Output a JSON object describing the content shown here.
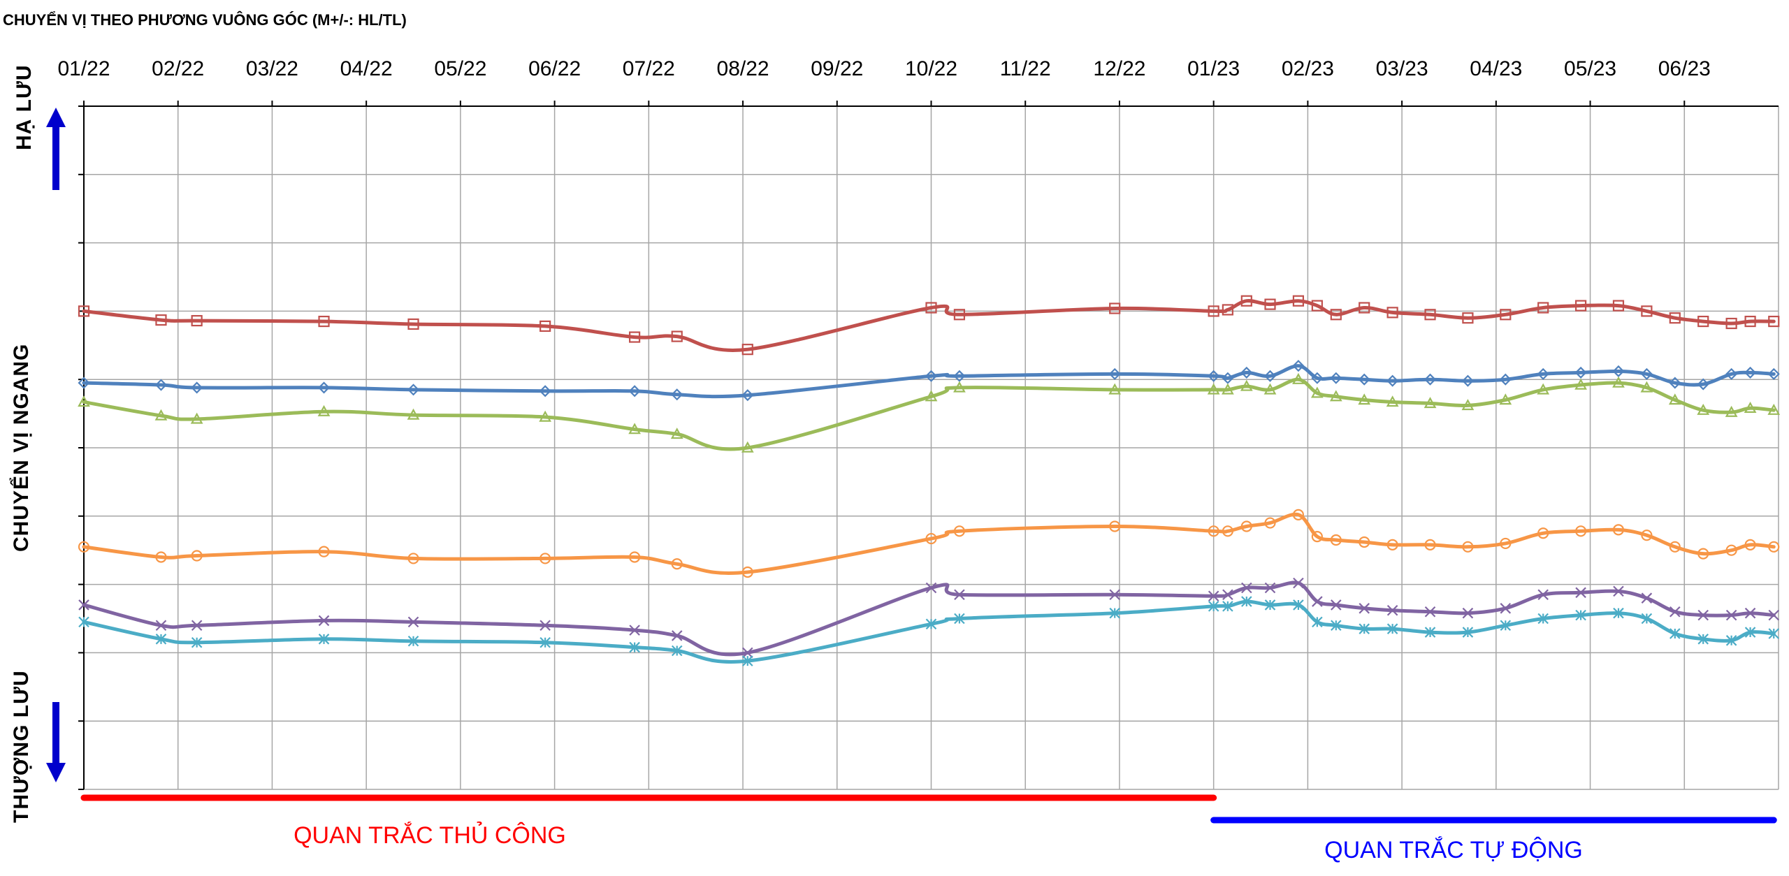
{
  "chart_data": {
    "type": "line",
    "title": "CHUYỂN VỊ THEO PHƯƠNG VUÔNG GÓC (M+/-: HL/TL)",
    "ylabel": "CHUYỂN VỊ NGANG",
    "ylabel_top": "HẠ LƯU",
    "ylabel_bottom": "THƯỢNG LƯU",
    "x_ticks": [
      "01/22",
      "02/22",
      "03/22",
      "04/22",
      "05/22",
      "06/22",
      "07/22",
      "08/22",
      "09/22",
      "10/22",
      "11/22",
      "12/22",
      "01/23",
      "02/23",
      "03/23",
      "04/23",
      "05/23",
      "06/23"
    ],
    "xlim": [
      0,
      18
    ],
    "ylim": [
      -10,
      0
    ],
    "grid": true,
    "periods": [
      {
        "label": "QUAN TRẮC THỦ CÔNG",
        "from": 0.0,
        "to": 12.0,
        "color": "#ff0000"
      },
      {
        "label": "QUAN TRẮC TỰ ĐỘNG",
        "from": 12.0,
        "to": 17.95,
        "color": "#0000ff"
      }
    ],
    "series": [
      {
        "color": "#c0504d",
        "marker": "square",
        "x": [
          0,
          0.82,
          1.2,
          2.55,
          3.5,
          4.9,
          5.85,
          6.3,
          7.05,
          9.0,
          9.3,
          10.95,
          12.0,
          12.15,
          12.35,
          12.6,
          12.9,
          13.1,
          13.3,
          13.6,
          13.9,
          14.3,
          14.7,
          15.1,
          15.5,
          15.9,
          16.3,
          16.6,
          16.9,
          17.2,
          17.5,
          17.7,
          17.95
        ],
        "y": [
          -3.0,
          -3.13,
          -3.14,
          -3.15,
          -3.19,
          -3.22,
          -3.38,
          -3.37,
          -3.56,
          -2.95,
          -3.05,
          -2.96,
          -3.0,
          -2.98,
          -2.85,
          -2.9,
          -2.85,
          -2.92,
          -3.05,
          -2.95,
          -3.02,
          -3.05,
          -3.1,
          -3.05,
          -2.95,
          -2.92,
          -2.92,
          -3.0,
          -3.1,
          -3.15,
          -3.18,
          -3.15,
          -3.15
        ]
      },
      {
        "color": "#4f81bd",
        "marker": "diamond",
        "x": [
          0,
          0.82,
          1.2,
          2.55,
          3.5,
          4.9,
          5.85,
          6.3,
          7.05,
          9.0,
          9.3,
          10.95,
          12.0,
          12.15,
          12.35,
          12.6,
          12.9,
          13.1,
          13.3,
          13.6,
          13.9,
          14.3,
          14.7,
          15.1,
          15.5,
          15.9,
          16.3,
          16.6,
          16.9,
          17.2,
          17.5,
          17.7,
          17.95
        ],
        "y": [
          -4.05,
          -4.08,
          -4.12,
          -4.12,
          -4.15,
          -4.17,
          -4.17,
          -4.22,
          -4.23,
          -3.95,
          -3.95,
          -3.92,
          -3.95,
          -3.98,
          -3.9,
          -3.95,
          -3.8,
          -3.98,
          -3.98,
          -4.0,
          -4.02,
          -4.0,
          -4.02,
          -4.0,
          -3.92,
          -3.9,
          -3.88,
          -3.92,
          -4.05,
          -4.07,
          -3.92,
          -3.9,
          -3.92
        ]
      },
      {
        "color": "#9bbb59",
        "marker": "triangle",
        "x": [
          0,
          0.82,
          1.2,
          2.55,
          3.5,
          4.9,
          5.85,
          6.3,
          7.05,
          9.0,
          9.3,
          10.95,
          12.0,
          12.15,
          12.35,
          12.6,
          12.9,
          13.1,
          13.3,
          13.6,
          13.9,
          14.3,
          14.7,
          15.1,
          15.5,
          15.9,
          16.3,
          16.6,
          16.9,
          17.2,
          17.5,
          17.7,
          17.95
        ],
        "y": [
          -4.33,
          -4.53,
          -4.58,
          -4.47,
          -4.52,
          -4.55,
          -4.73,
          -4.8,
          -5.0,
          -4.25,
          -4.12,
          -4.15,
          -4.15,
          -4.15,
          -4.1,
          -4.15,
          -4.0,
          -4.2,
          -4.25,
          -4.3,
          -4.33,
          -4.35,
          -4.38,
          -4.3,
          -4.15,
          -4.08,
          -4.05,
          -4.12,
          -4.3,
          -4.45,
          -4.48,
          -4.42,
          -4.45
        ]
      },
      {
        "color": "#f79646",
        "marker": "circle",
        "x": [
          0,
          0.82,
          1.2,
          2.55,
          3.5,
          4.9,
          5.85,
          6.3,
          7.05,
          9.0,
          9.3,
          10.95,
          12.0,
          12.15,
          12.35,
          12.6,
          12.9,
          13.1,
          13.3,
          13.6,
          13.9,
          14.3,
          14.7,
          15.1,
          15.5,
          15.9,
          16.3,
          16.6,
          16.9,
          17.2,
          17.5,
          17.7,
          17.95
        ],
        "y": [
          -6.45,
          -6.6,
          -6.58,
          -6.52,
          -6.62,
          -6.62,
          -6.6,
          -6.7,
          -6.82,
          -6.33,
          -6.22,
          -6.15,
          -6.22,
          -6.22,
          -6.15,
          -6.1,
          -5.98,
          -6.3,
          -6.35,
          -6.38,
          -6.42,
          -6.42,
          -6.45,
          -6.4,
          -6.25,
          -6.22,
          -6.2,
          -6.28,
          -6.45,
          -6.55,
          -6.5,
          -6.42,
          -6.45
        ]
      },
      {
        "color": "#8064a2",
        "marker": "x",
        "x": [
          0,
          0.82,
          1.2,
          2.55,
          3.5,
          4.9,
          5.85,
          6.3,
          7.05,
          9.0,
          9.3,
          10.95,
          12.0,
          12.15,
          12.35,
          12.6,
          12.9,
          13.1,
          13.3,
          13.6,
          13.9,
          14.3,
          14.7,
          15.1,
          15.5,
          15.9,
          16.3,
          16.6,
          16.9,
          17.2,
          17.5,
          17.7,
          17.95
        ],
        "y": [
          -7.3,
          -7.6,
          -7.6,
          -7.53,
          -7.55,
          -7.6,
          -7.67,
          -7.75,
          -8.0,
          -7.05,
          -7.15,
          -7.15,
          -7.17,
          -7.15,
          -7.05,
          -7.05,
          -6.98,
          -7.25,
          -7.3,
          -7.35,
          -7.38,
          -7.4,
          -7.42,
          -7.35,
          -7.15,
          -7.12,
          -7.1,
          -7.2,
          -7.4,
          -7.45,
          -7.45,
          -7.42,
          -7.45
        ]
      },
      {
        "color": "#4bacc6",
        "marker": "star",
        "x": [
          0,
          0.82,
          1.2,
          2.55,
          3.5,
          4.9,
          5.85,
          6.3,
          7.05,
          9.0,
          9.3,
          10.95,
          12.0,
          12.15,
          12.35,
          12.6,
          12.9,
          13.1,
          13.3,
          13.6,
          13.9,
          14.3,
          14.7,
          15.1,
          15.5,
          15.9,
          16.3,
          16.6,
          16.9,
          17.2,
          17.5,
          17.7,
          17.95
        ],
        "y": [
          -7.55,
          -7.8,
          -7.85,
          -7.8,
          -7.83,
          -7.85,
          -7.92,
          -7.97,
          -8.12,
          -7.58,
          -7.5,
          -7.42,
          -7.32,
          -7.32,
          -7.25,
          -7.3,
          -7.3,
          -7.55,
          -7.6,
          -7.65,
          -7.65,
          -7.7,
          -7.7,
          -7.6,
          -7.5,
          -7.45,
          -7.42,
          -7.5,
          -7.72,
          -7.8,
          -7.82,
          -7.7,
          -7.72
        ]
      }
    ]
  }
}
